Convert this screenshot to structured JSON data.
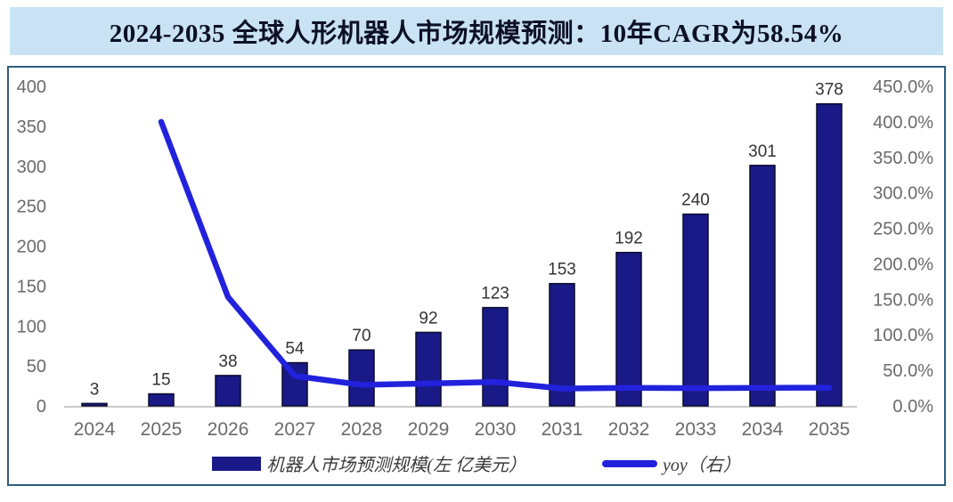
{
  "title": "2024-2035 全球人形机器人市场规模预测：10年CAGR为58.54%",
  "colors": {
    "banner_bg": "#c9e3f5",
    "banner_text": "#0d1026",
    "panel_border": "#2e5e7e",
    "bar": "#191987",
    "bar_stroke": "#0a0a2e",
    "line": "#2222dd",
    "tick": "#6a6a6a",
    "label": "#333333",
    "baseline": "#c9c9c9",
    "legend_text": "#3a3a3a"
  },
  "chart_data": {
    "type": "bar",
    "combo": "bar+line",
    "title": "2024-2035 全球人形机器人市场规模预测：10年CAGR为58.54%",
    "categories": [
      "2024",
      "2025",
      "2026",
      "2027",
      "2028",
      "2029",
      "2030",
      "2031",
      "2032",
      "2033",
      "2034",
      "2035"
    ],
    "series": [
      {
        "name": "机器人市场预测规模(左 亿美元）",
        "type": "bar",
        "axis": "left",
        "values": [
          3,
          15,
          38,
          54,
          70,
          92,
          123,
          153,
          192,
          240,
          301,
          378
        ]
      },
      {
        "name": "yoy（右）",
        "type": "line",
        "axis": "right",
        "unit": "%",
        "values": [
          null,
          400.0,
          153.3,
          42.1,
          29.6,
          31.4,
          33.7,
          24.4,
          25.5,
          25.0,
          25.4,
          25.6
        ]
      }
    ],
    "bar_labels": [
      "3",
      "15",
      "38",
      "54",
      "70",
      "92",
      "123",
      "153",
      "192",
      "240",
      "301",
      "378"
    ],
    "left_axis": {
      "min": 0,
      "max": 400,
      "ticks": [
        "400",
        "350",
        "300",
        "250",
        "200",
        "150",
        "100",
        "50",
        "0"
      ]
    },
    "right_axis": {
      "min": 0,
      "max": 450,
      "ticks": [
        "450.0%",
        "400.0%",
        "350.0%",
        "300.0%",
        "250.0%",
        "200.0%",
        "150.0%",
        "100.0%",
        "50.0%",
        "0.0%"
      ]
    },
    "grid": "off",
    "legend_position": "bottom"
  }
}
